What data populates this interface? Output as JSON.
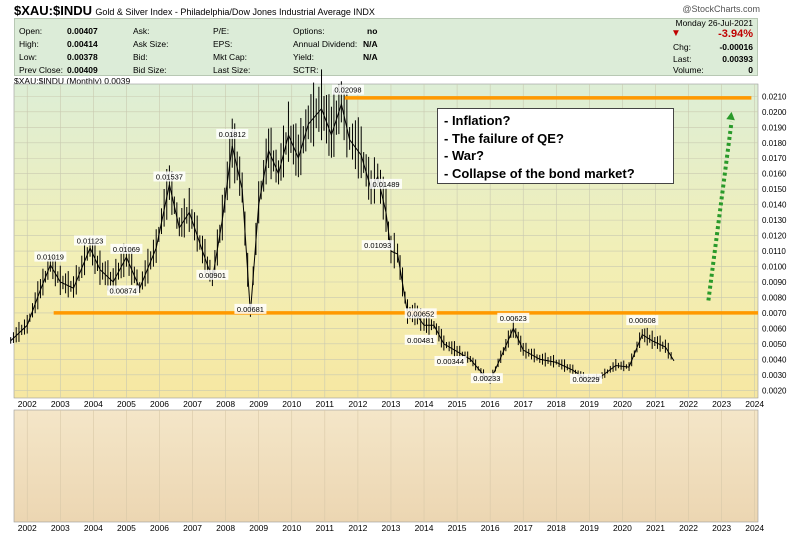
{
  "header": {
    "symbol": "$XAU:$INDU",
    "description": "Gold & Silver Index - Philadelphia/Dow Jones Industrial Average INDX",
    "logo": "@StockCharts.com"
  },
  "quote": {
    "rows": [
      {
        "label": "Open:",
        "value": "0.00407"
      },
      {
        "label": "High:",
        "value": "0.00414"
      },
      {
        "label": "Low:",
        "value": "0.00378"
      },
      {
        "label": "Prev Close:",
        "value": "0.00409"
      }
    ],
    "col2": [
      "Ask:",
      "Ask Size:",
      "Bid:",
      "Bid Size:"
    ],
    "col3": [
      "P/E:",
      "EPS:",
      "Mkt Cap:",
      "Last Size:"
    ],
    "col4": [
      {
        "label": "Options:",
        "value": "no"
      },
      {
        "label": "Annual Dividend:",
        "value": "N/A"
      },
      {
        "label": "Yield:",
        "value": "N/A"
      },
      {
        "label": "SCTR:",
        "value": ""
      }
    ],
    "date": "Monday  26-Jul-2021",
    "change_pct": "-3.94%",
    "right_rows": [
      {
        "label": "Chg:",
        "value": "-0.00016"
      },
      {
        "label": "Last:",
        "value": "0.00393"
      },
      {
        "label": "Volume:",
        "value": "0"
      }
    ],
    "legend": "$XAU:$INDU (Monthly) 0.0039"
  },
  "colors": {
    "orange": "#ff9900",
    "arrow": "#2a9a2a",
    "price": "#000000",
    "change_red": "#c00000"
  },
  "chart_data": {
    "type": "line",
    "title": "$XAU:$INDU",
    "ylim": [
      0.0015,
      0.0218
    ],
    "xlim": [
      2001.6,
      2024.1
    ],
    "y_ticks": [
      0.002,
      0.003,
      0.004,
      0.005,
      0.006,
      0.007,
      0.008,
      0.009,
      0.01,
      0.011,
      0.012,
      0.013,
      0.014,
      0.015,
      0.016,
      0.017,
      0.018,
      0.019,
      0.02,
      0.021
    ],
    "y_tick_labels": [
      "0.0020",
      "0.0030",
      "0.0040",
      "0.0050",
      "0.0060",
      "0.0070",
      "0.0080",
      "0.0090",
      "0.0100",
      "0.0110",
      "0.0120",
      "0.0130",
      "0.0140",
      "0.0150",
      "0.0160",
      "0.0170",
      "0.0180",
      "0.0190",
      "0.0200",
      "0.0210"
    ],
    "x_ticks": [
      "2002",
      "2003",
      "2004",
      "2005",
      "2006",
      "2007",
      "2008",
      "2009",
      "2010",
      "2011",
      "2012",
      "2013",
      "2014",
      "2015",
      "2016",
      "2017",
      "2018",
      "2019",
      "2020",
      "2021",
      "2022",
      "2023",
      "2024"
    ],
    "series": [
      {
        "points": [
          [
            2001.5,
            0.0052
          ],
          [
            2002.0,
            0.0062
          ],
          [
            2002.4,
            0.0085
          ],
          [
            2002.7,
            0.0101
          ],
          [
            2003.0,
            0.009
          ],
          [
            2003.4,
            0.0086
          ],
          [
            2003.9,
            0.0112
          ],
          [
            2004.2,
            0.0098
          ],
          [
            2004.6,
            0.009
          ],
          [
            2005.0,
            0.0106
          ],
          [
            2005.4,
            0.0086
          ],
          [
            2005.9,
            0.0112
          ],
          [
            2006.3,
            0.0153
          ],
          [
            2006.6,
            0.0125
          ],
          [
            2006.9,
            0.0135
          ],
          [
            2007.3,
            0.011
          ],
          [
            2007.6,
            0.0092
          ],
          [
            2007.9,
            0.013
          ],
          [
            2008.2,
            0.0178
          ],
          [
            2008.5,
            0.015
          ],
          [
            2008.75,
            0.007
          ],
          [
            2009.0,
            0.014
          ],
          [
            2009.3,
            0.0175
          ],
          [
            2009.6,
            0.016
          ],
          [
            2009.9,
            0.0185
          ],
          [
            2010.2,
            0.017
          ],
          [
            2010.5,
            0.0192
          ],
          [
            2010.9,
            0.0202
          ],
          [
            2011.2,
            0.0185
          ],
          [
            2011.5,
            0.0205
          ],
          [
            2011.75,
            0.0182
          ],
          [
            2012.1,
            0.0172
          ],
          [
            2012.4,
            0.015
          ],
          [
            2012.6,
            0.0158
          ],
          [
            2012.85,
            0.0135
          ],
          [
            2013.0,
            0.011
          ],
          [
            2013.2,
            0.0108
          ],
          [
            2013.5,
            0.007
          ],
          [
            2013.8,
            0.0068
          ],
          [
            2014.0,
            0.0062
          ],
          [
            2014.3,
            0.0062
          ],
          [
            2014.6,
            0.005
          ],
          [
            2015.0,
            0.0045
          ],
          [
            2015.4,
            0.004
          ],
          [
            2015.8,
            0.003
          ],
          [
            2016.0,
            0.0026
          ],
          [
            2016.4,
            0.0045
          ],
          [
            2016.7,
            0.006
          ],
          [
            2017.0,
            0.0046
          ],
          [
            2017.5,
            0.004
          ],
          [
            2018.0,
            0.0038
          ],
          [
            2018.5,
            0.0033
          ],
          [
            2018.9,
            0.0027
          ],
          [
            2019.3,
            0.0028
          ],
          [
            2019.8,
            0.0036
          ],
          [
            2020.2,
            0.0035
          ],
          [
            2020.6,
            0.0056
          ],
          [
            2020.9,
            0.0052
          ],
          [
            2021.3,
            0.0048
          ],
          [
            2021.56,
            0.0039
          ]
        ]
      }
    ],
    "annotations": [
      {
        "label": "0.01019",
        "x": 2002.7,
        "y": 0.01019
      },
      {
        "label": "0.01123",
        "x": 2003.9,
        "y": 0.01123
      },
      {
        "label": "0.01069",
        "x": 2005.0,
        "y": 0.01069
      },
      {
        "label": "0.00874",
        "x": 2004.9,
        "y": 0.008
      },
      {
        "label": "0.01537",
        "x": 2006.3,
        "y": 0.01537
      },
      {
        "label": "0.00901",
        "x": 2007.6,
        "y": 0.00901
      },
      {
        "label": "0.01812",
        "x": 2008.2,
        "y": 0.01812
      },
      {
        "label": "0.00681",
        "x": 2008.75,
        "y": 0.00681
      },
      {
        "label": "0.02098",
        "x": 2011.7,
        "y": 0.02098
      },
      {
        "label": "0.01489",
        "x": 2012.85,
        "y": 0.01489
      },
      {
        "label": "0.01093",
        "x": 2012.6,
        "y": 0.01093
      },
      {
        "label": "0.00652",
        "x": 2013.9,
        "y": 0.00652
      },
      {
        "label": "0.00481",
        "x": 2013.9,
        "y": 0.00481
      },
      {
        "label": "0.00344",
        "x": 2014.8,
        "y": 0.00344
      },
      {
        "label": "0.00233",
        "x": 2015.9,
        "y": 0.00233
      },
      {
        "label": "0.00623",
        "x": 2016.7,
        "y": 0.00623
      },
      {
        "label": "0.00229",
        "x": 2018.9,
        "y": 0.00229
      },
      {
        "label": "0.00608",
        "x": 2020.6,
        "y": 0.00608
      }
    ],
    "reference_lines": [
      {
        "y": 0.0209,
        "x_from": 2011.6,
        "x_to": 2023.9
      },
      {
        "y": 0.007,
        "x_from": 2002.8,
        "x_to": 2024.1
      }
    ],
    "arrow": {
      "from": [
        2022.6,
        0.0078
      ],
      "to": [
        2023.3,
        0.02
      ]
    },
    "callout": [
      "- Inflation?",
      "- The failure of QE?",
      "- War?",
      "- Collapse of the bond market?"
    ]
  }
}
